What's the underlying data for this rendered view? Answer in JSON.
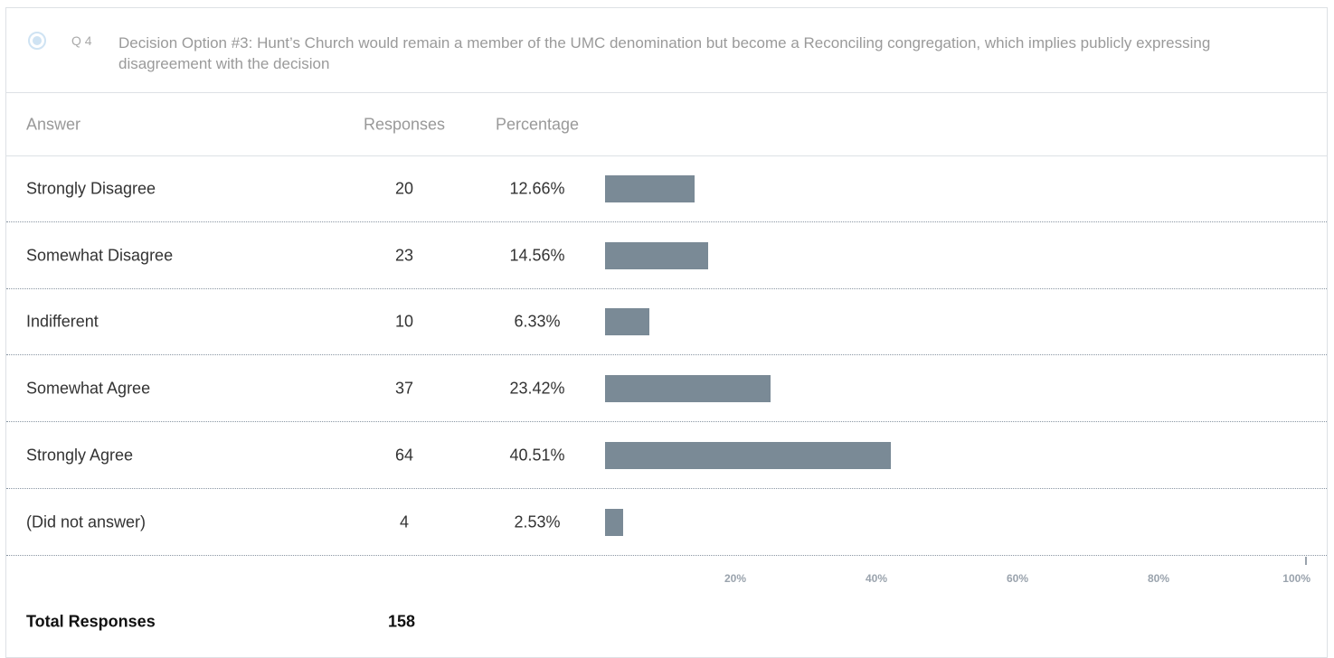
{
  "header": {
    "number": "Q 4",
    "question": "Decision Option #3: Hunt’s Church would remain a member of the UMC denomination but become a Reconciling congregation, which implies publicly expressing disagreement with the decision"
  },
  "table": {
    "columns": [
      "Answer",
      "Responses",
      "Percentage"
    ],
    "rows": [
      {
        "answer": "Strongly Disagree",
        "responses": 20,
        "percentage": {
          "value": 12.66,
          "label": "12.66%"
        }
      },
      {
        "answer": "Somewhat Disagree",
        "responses": 23,
        "percentage": {
          "value": 14.56,
          "label": "14.56%"
        }
      },
      {
        "answer": "Indifferent",
        "responses": 10,
        "percentage": {
          "value": 6.33,
          "label": "6.33%"
        }
      },
      {
        "answer": "Somewhat Agree",
        "responses": 37,
        "percentage": {
          "value": 23.42,
          "label": "23.42%"
        }
      },
      {
        "answer": "Strongly Agree",
        "responses": 64,
        "percentage": {
          "value": 40.51,
          "label": "40.51%"
        }
      },
      {
        "answer": "(Did not answer)",
        "responses": 4,
        "percentage": {
          "value": 2.53,
          "label": "2.53%"
        }
      }
    ],
    "bar_color": "#7a8a96",
    "xlim": [
      0,
      100
    ],
    "xticks": [
      {
        "value": 20,
        "label": "20%"
      },
      {
        "value": 40,
        "label": "40%"
      },
      {
        "value": 60,
        "label": "60%"
      },
      {
        "value": 80,
        "label": "80%"
      },
      {
        "value": 100,
        "label": "100%"
      }
    ],
    "total": {
      "label": "Total Responses",
      "value": 158
    }
  }
}
